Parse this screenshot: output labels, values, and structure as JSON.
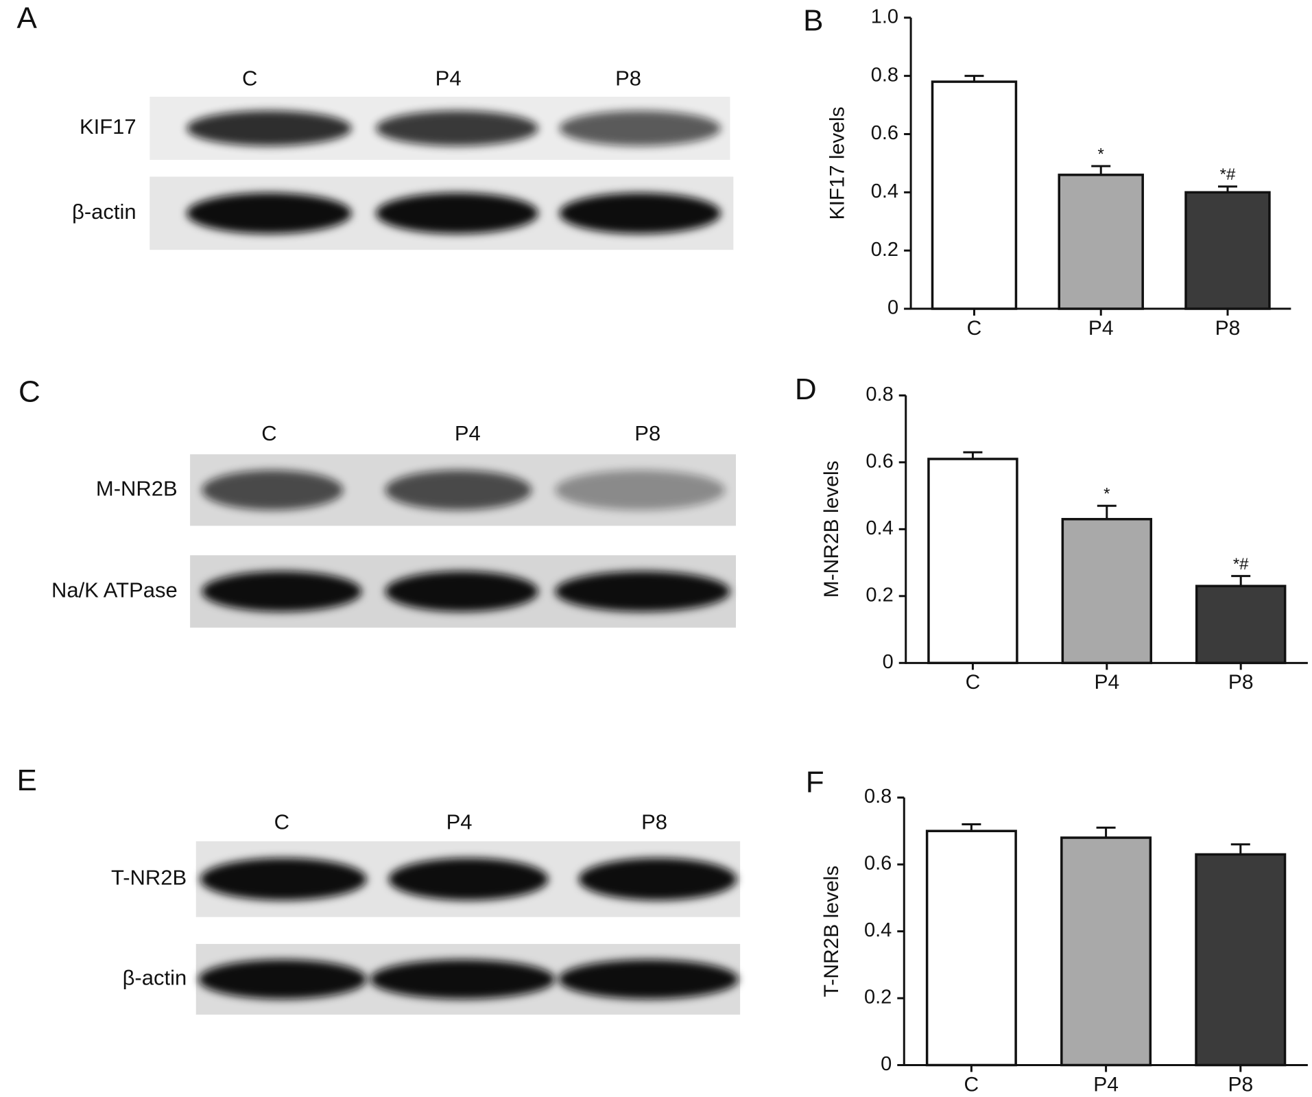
{
  "chart_data": [
    {
      "type": "bar",
      "panel": "B",
      "ylabel": "KIF17 levels",
      "categories": [
        "C",
        "P4",
        "P8"
      ],
      "values": [
        0.78,
        0.46,
        0.4
      ],
      "errors": [
        0.02,
        0.03,
        0.02
      ],
      "annotations": [
        null,
        "*",
        "*#"
      ],
      "colors": [
        "#ffffff",
        "#a9a9a9",
        "#3b3b3b"
      ],
      "ylim": [
        0,
        1.0
      ],
      "yticks": [
        0,
        0.2,
        0.4,
        0.6,
        0.8,
        {
          "value": 1.0,
          "label": "1.0"
        }
      ]
    },
    {
      "type": "bar",
      "panel": "D",
      "ylabel": "M-NR2B levels",
      "categories": [
        "C",
        "P4",
        "P8"
      ],
      "values": [
        0.61,
        0.43,
        0.23
      ],
      "errors": [
        0.02,
        0.04,
        0.03
      ],
      "annotations": [
        null,
        "*",
        "*#"
      ],
      "colors": [
        "#ffffff",
        "#a9a9a9",
        "#3b3b3b"
      ],
      "ylim": [
        0,
        0.8
      ],
      "yticks": [
        0,
        0.2,
        0.4,
        0.6,
        0.8
      ]
    },
    {
      "type": "bar",
      "panel": "F",
      "ylabel": "T-NR2B levels",
      "categories": [
        "C",
        "P4",
        "P8"
      ],
      "values": [
        0.7,
        0.68,
        0.63
      ],
      "errors": [
        0.02,
        0.03,
        0.03
      ],
      "annotations": [
        null,
        null,
        null
      ],
      "colors": [
        "#ffffff",
        "#a9a9a9",
        "#3b3b3b"
      ],
      "ylim": [
        0,
        0.8
      ],
      "yticks": [
        0,
        0.2,
        0.4,
        0.6,
        0.8
      ]
    }
  ],
  "blots": [
    {
      "panel": "A",
      "lanes": [
        "C",
        "P4",
        "P8"
      ],
      "rows": [
        "KIF17",
        "β-actin"
      ]
    },
    {
      "panel": "C",
      "lanes": [
        "C",
        "P4",
        "P8"
      ],
      "rows": [
        "M-NR2B",
        "Na/K ATPase"
      ]
    },
    {
      "panel": "E",
      "lanes": [
        "C",
        "P4",
        "P8"
      ],
      "rows": [
        "T-NR2B",
        "β-actin"
      ]
    }
  ]
}
